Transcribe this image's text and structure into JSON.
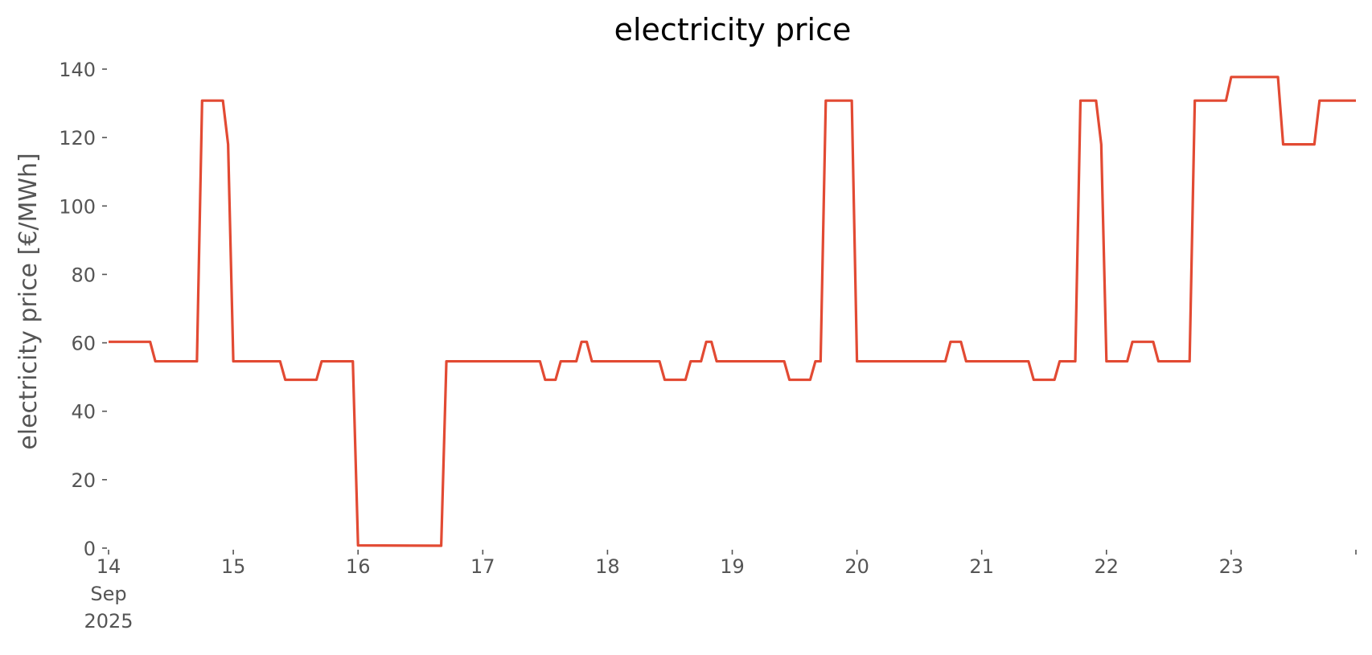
{
  "chart_data": {
    "type": "line",
    "title": "electricity price",
    "xlabel": "",
    "ylabel": "electricity price [€/MWh]",
    "xlim": [
      "2025-09-14 00:00",
      "2025-09-24 00:00"
    ],
    "ylim": [
      0,
      140
    ],
    "grid": false,
    "legend": "none",
    "x_ticks": [
      {
        "value": "2025-09-14",
        "lines": [
          "14",
          "Sep",
          "2025"
        ]
      },
      {
        "value": "2025-09-15",
        "lines": [
          "15"
        ]
      },
      {
        "value": "2025-09-16",
        "lines": [
          "16"
        ]
      },
      {
        "value": "2025-09-17",
        "lines": [
          "17"
        ]
      },
      {
        "value": "2025-09-18",
        "lines": [
          "18"
        ]
      },
      {
        "value": "2025-09-19",
        "lines": [
          "19"
        ]
      },
      {
        "value": "2025-09-20",
        "lines": [
          "20"
        ]
      },
      {
        "value": "2025-09-21",
        "lines": [
          "21"
        ]
      },
      {
        "value": "2025-09-22",
        "lines": [
          "22"
        ]
      },
      {
        "value": "2025-09-23",
        "lines": [
          "23"
        ]
      },
      {
        "value": "2025-09-24",
        "lines": []
      }
    ],
    "y_ticks": [
      0,
      20,
      40,
      60,
      80,
      100,
      120,
      140
    ],
    "series": [
      {
        "color": "#e24a33",
        "points": [
          [
            "2025-09-14 00:00",
            60.3
          ],
          [
            "2025-09-14 08:00",
            60.3
          ],
          [
            "2025-09-14 09:00",
            54.6
          ],
          [
            "2025-09-14 17:00",
            54.6
          ],
          [
            "2025-09-14 18:00",
            130.8
          ],
          [
            "2025-09-14 22:00",
            130.8
          ],
          [
            "2025-09-14 23:00",
            118.0
          ],
          [
            "2025-09-15 00:00",
            54.6
          ],
          [
            "2025-09-15 09:00",
            54.6
          ],
          [
            "2025-09-15 10:00",
            49.2
          ],
          [
            "2025-09-15 16:00",
            49.2
          ],
          [
            "2025-09-15 17:00",
            54.6
          ],
          [
            "2025-09-15 23:00",
            54.6
          ],
          [
            "2025-09-16 00:00",
            0.8
          ],
          [
            "2025-09-16 16:00",
            0.7
          ],
          [
            "2025-09-16 17:00",
            54.6
          ],
          [
            "2025-09-17 11:00",
            54.6
          ],
          [
            "2025-09-17 12:00",
            49.2
          ],
          [
            "2025-09-17 14:00",
            49.2
          ],
          [
            "2025-09-17 15:00",
            54.6
          ],
          [
            "2025-09-17 18:00",
            54.6
          ],
          [
            "2025-09-17 19:00",
            60.3
          ],
          [
            "2025-09-17 20:00",
            60.3
          ],
          [
            "2025-09-17 21:00",
            54.6
          ],
          [
            "2025-09-18 10:00",
            54.6
          ],
          [
            "2025-09-18 11:00",
            49.2
          ],
          [
            "2025-09-18 15:00",
            49.2
          ],
          [
            "2025-09-18 16:00",
            54.6
          ],
          [
            "2025-09-18 18:00",
            54.6
          ],
          [
            "2025-09-18 19:00",
            60.3
          ],
          [
            "2025-09-18 20:00",
            60.3
          ],
          [
            "2025-09-18 21:00",
            54.6
          ],
          [
            "2025-09-19 10:00",
            54.6
          ],
          [
            "2025-09-19 11:00",
            49.2
          ],
          [
            "2025-09-19 15:00",
            49.2
          ],
          [
            "2025-09-19 16:00",
            54.6
          ],
          [
            "2025-09-19 17:00",
            54.6
          ],
          [
            "2025-09-19 18:00",
            130.8
          ],
          [
            "2025-09-19 23:00",
            130.8
          ],
          [
            "2025-09-20 00:00",
            54.6
          ],
          [
            "2025-09-20 17:00",
            54.6
          ],
          [
            "2025-09-20 18:00",
            60.3
          ],
          [
            "2025-09-20 20:00",
            60.3
          ],
          [
            "2025-09-20 21:00",
            54.6
          ],
          [
            "2025-09-21 09:00",
            54.6
          ],
          [
            "2025-09-21 10:00",
            49.2
          ],
          [
            "2025-09-21 14:00",
            49.2
          ],
          [
            "2025-09-21 15:00",
            54.6
          ],
          [
            "2025-09-21 18:00",
            54.6
          ],
          [
            "2025-09-21 19:00",
            130.8
          ],
          [
            "2025-09-21 22:00",
            130.8
          ],
          [
            "2025-09-21 23:00",
            118.0
          ],
          [
            "2025-09-22 00:00",
            54.6
          ],
          [
            "2025-09-22 04:00",
            54.6
          ],
          [
            "2025-09-22 05:00",
            60.3
          ],
          [
            "2025-09-22 09:00",
            60.3
          ],
          [
            "2025-09-22 10:00",
            54.6
          ],
          [
            "2025-09-22 16:00",
            54.6
          ],
          [
            "2025-09-22 17:00",
            130.8
          ],
          [
            "2025-09-22 23:00",
            130.8
          ],
          [
            "2025-09-23 00:00",
            137.7
          ],
          [
            "2025-09-23 09:00",
            137.7
          ],
          [
            "2025-09-23 10:00",
            118.0
          ],
          [
            "2025-09-23 16:00",
            118.0
          ],
          [
            "2025-09-23 17:00",
            130.8
          ],
          [
            "2025-09-24 00:00",
            130.8
          ]
        ]
      }
    ]
  }
}
